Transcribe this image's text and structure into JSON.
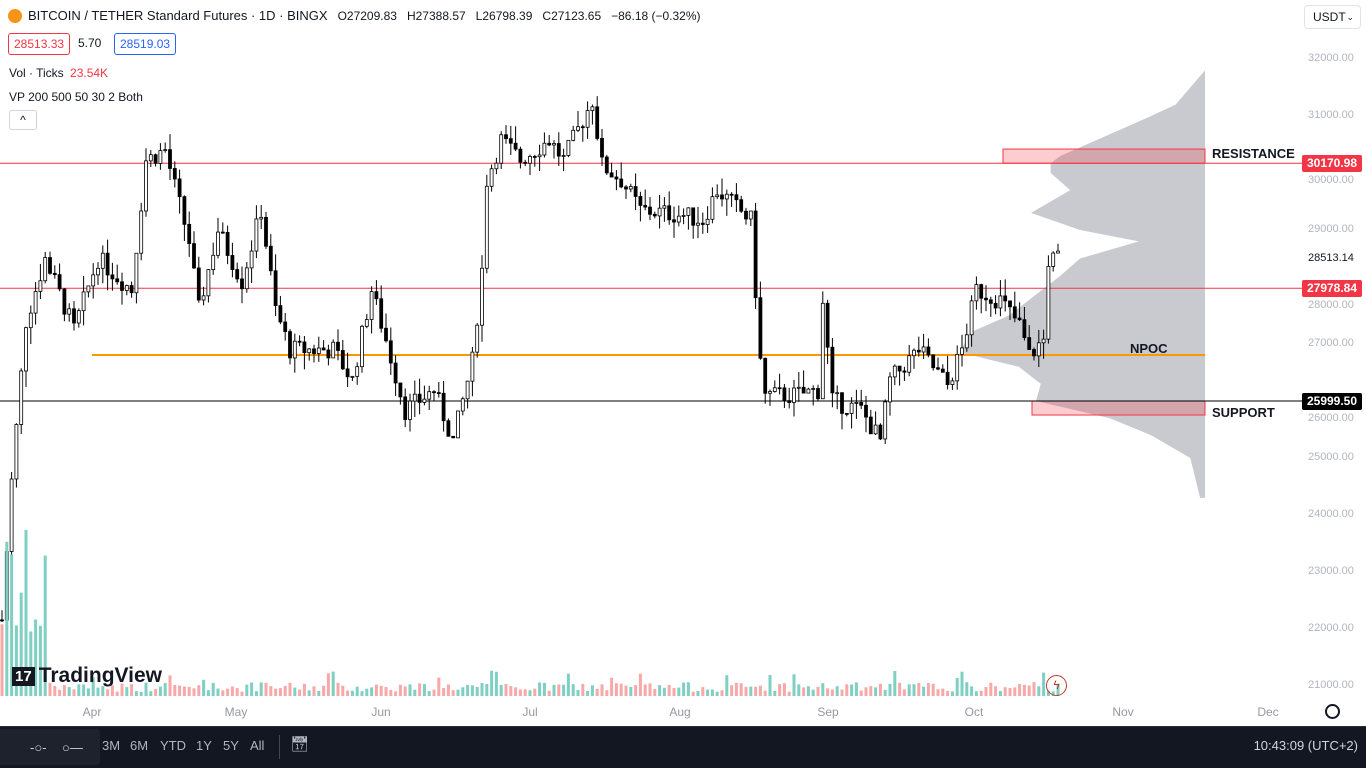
{
  "header": {
    "symbol": "BITCOIN / TETHER Standard Futures · 1D · BINGX",
    "open": "O27209.83",
    "high": "H27388.57",
    "low": "L26798.39",
    "close": "C27123.65",
    "change": "−86.18 (−0.32%)"
  },
  "quotes": {
    "bid": "28513.33",
    "spread": "5.70",
    "ask": "28519.03"
  },
  "indicators": {
    "vol_label": "Vol · Ticks",
    "vol_value": "23.54K",
    "vp_label": "VP 200 500 50 30 2 Both"
  },
  "currency": "USDT",
  "price_axis": {
    "ticks": [
      "32000.00",
      "31000.00",
      "30000.00",
      "29000.00",
      "28000.00",
      "27000.00",
      "26000.00",
      "25000.00",
      "24000.00",
      "23000.00",
      "22000.00",
      "21000.00"
    ],
    "last_price": "28513.14"
  },
  "levels": [
    {
      "name": "RESISTANCE",
      "price": 30170.98,
      "label": "30170.98",
      "color": "#f23645",
      "zone_top": 30420
    },
    {
      "name": "",
      "price": 27978.84,
      "label": "27978.84",
      "color": "#f23645"
    },
    {
      "name": "NPOC",
      "price": 26807,
      "color": "#ff9800"
    },
    {
      "name": "SUPPORT",
      "price": 25999.5,
      "label": "25999.50",
      "color": "#000000",
      "zone_bottom": 25754
    }
  ],
  "time_axis": [
    "Apr",
    "May",
    "Jun",
    "Jul",
    "Aug",
    "Sep",
    "Oct",
    "Nov",
    "Dec"
  ],
  "price_path": [
    [
      0,
      22160
    ],
    [
      2,
      24600
    ],
    [
      5,
      27400
    ],
    [
      9,
      28500
    ],
    [
      15,
      27250
    ],
    [
      20,
      28500
    ],
    [
      27,
      27950
    ],
    [
      30,
      30230
    ],
    [
      34,
      30400
    ],
    [
      39,
      28800
    ],
    [
      41,
      27600
    ],
    [
      45,
      29000
    ],
    [
      50,
      28100
    ],
    [
      54,
      29350
    ],
    [
      57,
      27600
    ],
    [
      60,
      26900
    ],
    [
      69,
      26900
    ],
    [
      73,
      26360
    ],
    [
      77,
      27950
    ],
    [
      80,
      27070
    ],
    [
      84,
      25840
    ],
    [
      90,
      26190
    ],
    [
      94,
      25300
    ],
    [
      98,
      26700
    ],
    [
      100,
      28300
    ],
    [
      101,
      29880
    ],
    [
      104,
      30580
    ],
    [
      108,
      30230
    ],
    [
      114,
      30580
    ],
    [
      117,
      30230
    ],
    [
      123,
      31280
    ],
    [
      125,
      30140
    ],
    [
      129,
      29880
    ],
    [
      133,
      29350
    ],
    [
      142,
      29260
    ],
    [
      146,
      29170
    ],
    [
      149,
      29700
    ],
    [
      156,
      29170
    ],
    [
      158,
      26700
    ],
    [
      159,
      26100
    ],
    [
      165,
      26100
    ],
    [
      170,
      26190
    ],
    [
      171,
      27770
    ],
    [
      173,
      26000
    ],
    [
      179,
      25840
    ],
    [
      183,
      25300
    ],
    [
      185,
      26360
    ],
    [
      191,
      26900
    ],
    [
      197,
      26280
    ],
    [
      200,
      26900
    ],
    [
      203,
      27950
    ],
    [
      208,
      27770
    ],
    [
      212,
      27330
    ],
    [
      214,
      26800
    ],
    [
      217,
      27070
    ],
    [
      218,
      28470
    ],
    [
      220,
      28500
    ]
  ],
  "volume_profile": [
    [
      31800,
      0
    ],
    [
      31200,
      0.12
    ],
    [
      31000,
      0.22
    ],
    [
      30600,
      0.43
    ],
    [
      30300,
      0.59
    ],
    [
      30170,
      0.63
    ],
    [
      30000,
      0.63
    ],
    [
      29700,
      0.55
    ],
    [
      29300,
      0.71
    ],
    [
      29000,
      0.51
    ],
    [
      28800,
      0.27
    ],
    [
      28500,
      0.51
    ],
    [
      28200,
      0.59
    ],
    [
      28000,
      0.65
    ],
    [
      27500,
      0.8
    ],
    [
      27200,
      0.96
    ],
    [
      26850,
      1.0
    ],
    [
      26600,
      0.76
    ],
    [
      26300,
      0.67
    ],
    [
      26000,
      0.69
    ],
    [
      25700,
      0.39
    ],
    [
      25400,
      0.22
    ],
    [
      25000,
      0.06
    ],
    [
      24300,
      0.02
    ]
  ],
  "toolbar": {
    "ranges": [
      "3M",
      "6M",
      "YTD",
      "1Y",
      "5Y",
      "All"
    ],
    "clock": "10:43:09 (UTC+2)"
  },
  "brand": "TradingView",
  "colors": {
    "up_volume": "#7fcfc3",
    "down_volume": "#f7a8a8",
    "profile": "#c9cad0",
    "bg_bar": "#131722"
  }
}
